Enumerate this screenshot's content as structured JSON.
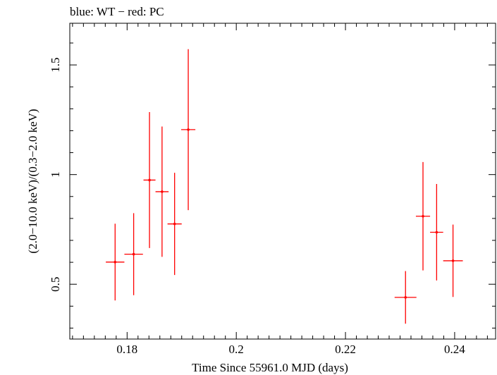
{
  "chart_data": {
    "type": "scatter",
    "title": "blue: WT − red: PC",
    "xlabel": "Time Since 55961.0 MJD (days)",
    "ylabel": "(2.0−10.0 keV)/(0.3−2.0 keV)",
    "xlim": [
      0.1695,
      0.2475
    ],
    "ylim": [
      0.25,
      1.69
    ],
    "x_ticks": [
      0.18,
      0.2,
      0.22,
      0.24
    ],
    "x_tick_labels": [
      "0.18",
      "0.2",
      "0.22",
      "0.24"
    ],
    "y_ticks": [
      0.5,
      1,
      1.5
    ],
    "y_tick_labels": [
      "0.5",
      "1",
      "1.5"
    ],
    "grid": false,
    "series": [
      {
        "color": "#ff0000",
        "points": [
          {
            "x": 0.1778,
            "xerr": 0.0017,
            "y": 0.601,
            "yerr": 0.175
          },
          {
            "x": 0.1812,
            "xerr": 0.0017,
            "y": 0.637,
            "yerr": 0.187
          },
          {
            "x": 0.1841,
            "xerr": 0.0011,
            "y": 0.975,
            "yerr": 0.31
          },
          {
            "x": 0.1864,
            "xerr": 0.0012,
            "y": 0.922,
            "yerr": 0.297
          },
          {
            "x": 0.1887,
            "xerr": 0.0013,
            "y": 0.775,
            "yerr": 0.233
          },
          {
            "x": 0.1912,
            "xerr": 0.0013,
            "y": 1.205,
            "yerr": 0.367
          },
          {
            "x": 0.231,
            "xerr": 0.002,
            "y": 0.44,
            "yerr": 0.12
          },
          {
            "x": 0.2342,
            "xerr": 0.0013,
            "y": 0.81,
            "yerr": 0.247
          },
          {
            "x": 0.2367,
            "xerr": 0.0012,
            "y": 0.737,
            "yerr": 0.22
          },
          {
            "x": 0.2397,
            "xerr": 0.0018,
            "y": 0.607,
            "yerr": 0.165
          }
        ]
      }
    ]
  }
}
